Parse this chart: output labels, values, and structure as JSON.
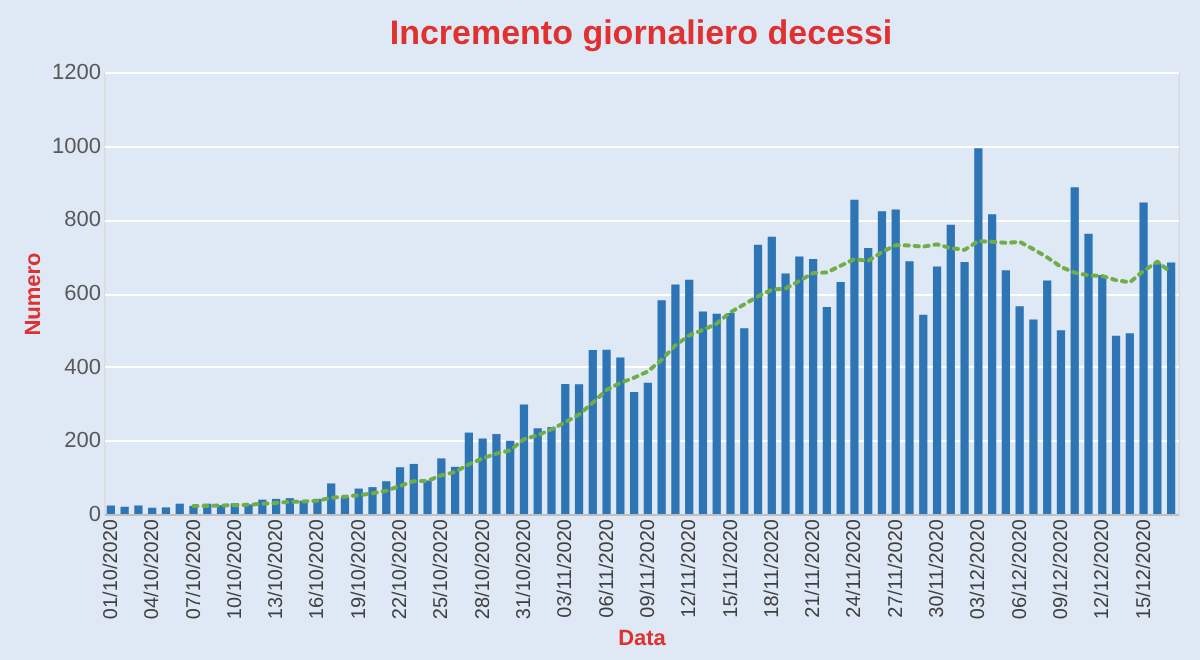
{
  "chart_data": {
    "type": "bar",
    "title": "Incremento giornaliero decessi",
    "xlabel": "Data",
    "ylabel": "Numero",
    "categories": [
      "01/10/2020",
      null,
      null,
      "04/10/2020",
      null,
      null,
      "07/10/2020",
      null,
      null,
      "10/10/2020",
      null,
      null,
      "13/10/2020",
      null,
      null,
      "16/10/2020",
      null,
      null,
      "19/10/2020",
      null,
      null,
      "22/10/2020",
      null,
      null,
      "25/10/2020",
      null,
      null,
      "28/10/2020",
      null,
      null,
      "31/10/2020",
      null,
      null,
      "03/11/2020",
      null,
      null,
      "06/11/2020",
      null,
      null,
      "09/11/2020",
      null,
      null,
      "12/11/2020",
      null,
      null,
      "15/11/2020",
      null,
      null,
      "18/11/2020",
      null,
      null,
      "21/11/2020",
      null,
      null,
      "24/11/2020",
      null,
      null,
      "27/11/2020",
      null,
      null,
      "30/11/2020",
      null,
      null,
      "03/12/2020",
      null,
      null,
      "06/12/2020",
      null,
      null,
      "09/12/2020",
      null,
      null,
      "12/12/2020",
      null,
      null,
      "15/12/2020",
      null,
      null
    ],
    "series": [
      {
        "color": "#2e75b6",
        "values": [
          23,
          20,
          23,
          17,
          18,
          28,
          22,
          28,
          24,
          29,
          26,
          39,
          41,
          43,
          36,
          41,
          83,
          47,
          69,
          73,
          89,
          127,
          136,
          91,
          151,
          128,
          221,
          205,
          217,
          199,
          297,
          233,
          236,
          353,
          352,
          445,
          446,
          425,
          331,
          356,
          580,
          623,
          636,
          550,
          544,
          546,
          504,
          731,
          753,
          653,
          699,
          692,
          562,
          630,
          853,
          722,
          822,
          827,
          686,
          541,
          672,
          785,
          684,
          993,
          814,
          662,
          564,
          528,
          634,
          499,
          887,
          761,
          649,
          484,
          491,
          846,
          680,
          683
        ]
      },
      {
        "type": "line",
        "color": "#70ad47",
        "line_style": "dotted",
        "values": [
          null,
          null,
          null,
          null,
          null,
          null,
          22,
          22,
          23,
          24,
          25,
          28,
          30,
          33,
          34,
          36,
          44,
          47,
          51,
          56,
          63,
          76,
          89,
          90,
          105,
          114,
          135,
          151,
          164,
          173,
          203,
          214,
          230,
          249,
          270,
          302,
          337,
          356,
          370,
          387,
          419,
          458,
          485,
          500,
          517,
          548,
          569,
          591,
          609,
          612,
          633,
          654,
          656,
          674,
          692,
          687,
          711,
          730,
          729,
          726,
          732,
          722,
          717,
          741,
          739,
          736,
          739,
          719,
          697,
          671,
          655,
          648,
          646,
          635,
          629,
          660,
          685,
          656
        ]
      }
    ],
    "ylim": [
      0,
      1200
    ],
    "yticks": [
      0,
      200,
      400,
      600,
      800,
      1000,
      1200
    ],
    "grid": "y"
  }
}
